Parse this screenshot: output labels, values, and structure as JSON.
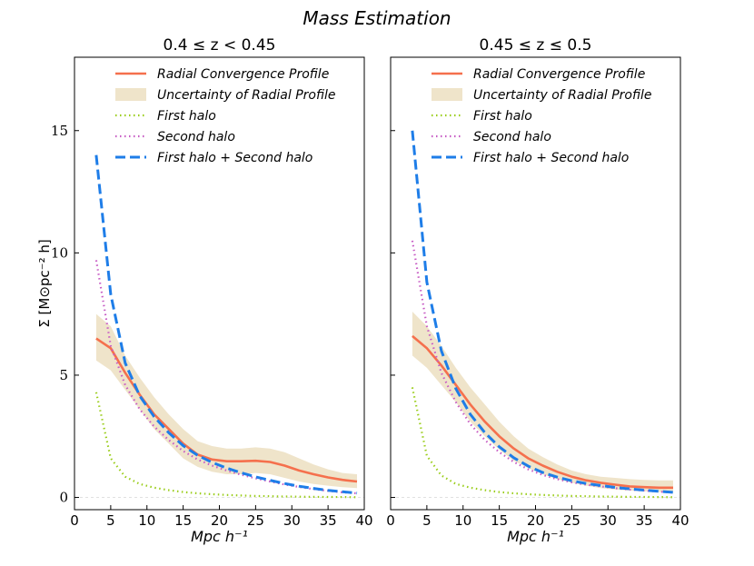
{
  "chart_data": {
    "type": "line",
    "title": "Mass Estimation",
    "ylabel": "Σ [M⊙pc⁻² h]",
    "xlabel": "Mpc h⁻¹",
    "xlim": [
      0,
      40
    ],
    "ylim": [
      -0.5,
      18
    ],
    "xticks": [
      0,
      5,
      10,
      15,
      20,
      25,
      30,
      35,
      40
    ],
    "yticks": [
      0,
      5,
      10,
      15
    ],
    "legend_position": "top-right",
    "legend": [
      "Radial Convergence Profile",
      "Uncertainty of Radial Profile",
      "First halo",
      "Second halo",
      "First halo + Second halo"
    ],
    "colors": {
      "profile": "#f5704d",
      "band": "#e8d8b4",
      "first": "#9acd1a",
      "second": "#c75bc4",
      "sum": "#1e7de8"
    },
    "panels": [
      {
        "title": "0.4 ≤ z < 0.45",
        "x": [
          3,
          5,
          7,
          9,
          11,
          13,
          15,
          17,
          19,
          21,
          23,
          25,
          27,
          29,
          31,
          33,
          35,
          37,
          39
        ],
        "series": [
          {
            "name": "Radial Convergence Profile",
            "values": [
              6.5,
              6.1,
              5.1,
              4.2,
              3.4,
              2.8,
              2.2,
              1.75,
              1.55,
              1.48,
              1.48,
              1.5,
              1.45,
              1.3,
              1.1,
              0.95,
              0.82,
              0.72,
              0.65
            ]
          },
          {
            "name": "Uncertainty upper",
            "values": [
              7.5,
              7.0,
              5.8,
              4.9,
              4.1,
              3.4,
              2.8,
              2.3,
              2.1,
              2.0,
              2.0,
              2.05,
              2.0,
              1.85,
              1.6,
              1.35,
              1.15,
              1.0,
              0.95
            ]
          },
          {
            "name": "Uncertainty lower",
            "values": [
              5.6,
              5.2,
              4.4,
              3.6,
              2.8,
              2.2,
              1.6,
              1.25,
              1.05,
              0.95,
              0.95,
              1.0,
              0.95,
              0.8,
              0.65,
              0.55,
              0.48,
              0.42,
              0.38
            ]
          },
          {
            "name": "First halo",
            "values": [
              4.3,
              1.6,
              0.85,
              0.55,
              0.4,
              0.3,
              0.22,
              0.17,
              0.13,
              0.1,
              0.08,
              0.06,
              0.05,
              0.04,
              0.03,
              0.025,
              0.02,
              0.015,
              0.01
            ]
          },
          {
            "name": "Second halo",
            "values": [
              9.7,
              6.2,
              4.6,
              3.6,
              2.9,
              2.35,
              1.9,
              1.55,
              1.3,
              1.1,
              0.93,
              0.78,
              0.65,
              0.53,
              0.43,
              0.34,
              0.27,
              0.21,
              0.17
            ]
          },
          {
            "name": "First halo + Second halo",
            "values": [
              14.0,
              8.3,
              5.5,
              4.15,
              3.3,
              2.65,
              2.12,
              1.72,
              1.43,
              1.2,
              1.01,
              0.84,
              0.7,
              0.57,
              0.46,
              0.37,
              0.29,
              0.23,
              0.18
            ]
          }
        ]
      },
      {
        "title": "0.45 ≤ z ≤ 0.5",
        "x": [
          3,
          5,
          7,
          9,
          11,
          13,
          15,
          17,
          19,
          21,
          23,
          25,
          27,
          29,
          31,
          33,
          35,
          37,
          39
        ],
        "series": [
          {
            "name": "Radial Convergence Profile",
            "values": [
              6.6,
              6.1,
              5.4,
              4.6,
              3.8,
              3.1,
              2.5,
              2.0,
              1.6,
              1.3,
              1.05,
              0.85,
              0.7,
              0.6,
              0.52,
              0.45,
              0.42,
              0.4,
              0.4
            ]
          },
          {
            "name": "Uncertainty upper",
            "values": [
              7.6,
              7.0,
              6.2,
              5.3,
              4.5,
              3.8,
              3.1,
              2.5,
              2.0,
              1.65,
              1.35,
              1.1,
              0.95,
              0.85,
              0.8,
              0.75,
              0.72,
              0.7,
              0.7
            ]
          },
          {
            "name": "Uncertainty lower",
            "values": [
              5.8,
              5.3,
              4.6,
              3.9,
              3.1,
              2.5,
              1.95,
              1.5,
              1.2,
              0.95,
              0.75,
              0.6,
              0.48,
              0.38,
              0.32,
              0.28,
              0.25,
              0.22,
              0.2
            ]
          },
          {
            "name": "First halo",
            "values": [
              4.5,
              1.7,
              0.9,
              0.55,
              0.4,
              0.3,
              0.22,
              0.17,
              0.13,
              0.1,
              0.08,
              0.06,
              0.05,
              0.04,
              0.03,
              0.025,
              0.02,
              0.015,
              0.01
            ]
          },
          {
            "name": "Second halo",
            "values": [
              10.5,
              7.0,
              5.1,
              3.9,
              3.0,
              2.35,
              1.85,
              1.45,
              1.15,
              0.92,
              0.75,
              0.62,
              0.52,
              0.45,
              0.38,
              0.32,
              0.28,
              0.24,
              0.2
            ]
          },
          {
            "name": "First halo + Second halo",
            "values": [
              15.0,
              8.8,
              6.0,
              4.45,
              3.4,
              2.65,
              2.07,
              1.62,
              1.28,
              1.02,
              0.83,
              0.68,
              0.57,
              0.49,
              0.41,
              0.35,
              0.3,
              0.25,
              0.21
            ]
          }
        ]
      }
    ]
  }
}
